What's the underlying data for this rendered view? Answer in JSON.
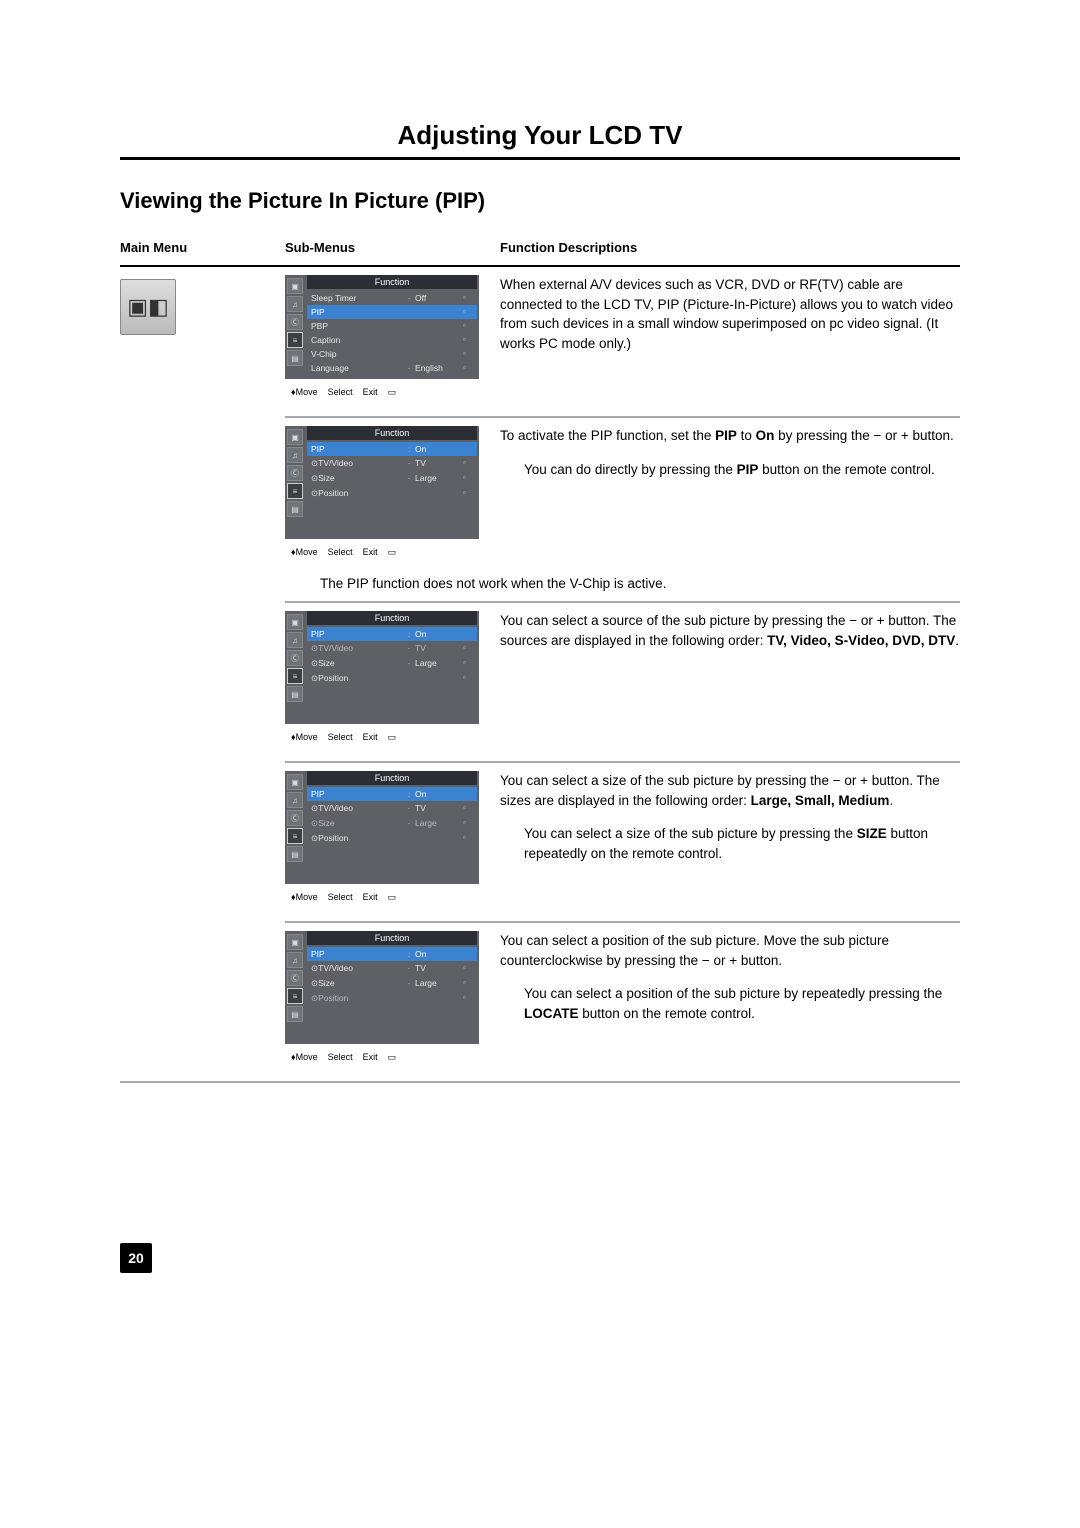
{
  "page_title": "Adjusting Your LCD TV",
  "section_title": "Viewing the Picture In Picture (PIP)",
  "headers": {
    "c1": "Main Menu",
    "c2": "Sub-Menus",
    "c3": "Function Descriptions"
  },
  "main_icon_glyph": "▣◧",
  "osd_common": {
    "title": "Function",
    "footer_move": "♦Move",
    "footer_select": "Select",
    "footer_exit": "Exit",
    "footer_glyph": "▭"
  },
  "block1": {
    "rows": [
      {
        "lbl": "Sleep Timer",
        "sep": "·",
        "val": "Off",
        "arr": "▫"
      },
      {
        "lbl": "PIP",
        "sep": "",
        "val": "",
        "arr": "▫",
        "hilite": true
      },
      {
        "lbl": "PBP",
        "sep": "",
        "val": "",
        "arr": "▫"
      },
      {
        "lbl": "Caption",
        "sep": "",
        "val": "",
        "arr": "▫"
      },
      {
        "lbl": "V-Chip",
        "sep": "",
        "val": "",
        "arr": "▫"
      },
      {
        "lbl": "Language",
        "sep": "·",
        "val": "English",
        "arr": "▫"
      }
    ],
    "desc": "When external A/V devices such as VCR, DVD or RF(TV) cable are connected to the LCD TV, PIP (Picture-In-Picture) allows you to watch video from such devices in a small window superimposed on pc video signal. (It works PC mode only.)"
  },
  "block2": {
    "rows": [
      {
        "lbl": "PIP",
        "sep": ":",
        "val": "On",
        "arr": "",
        "hilite": true
      },
      {
        "lbl": "⊙TV/Video",
        "sep": "·",
        "val": "TV",
        "arr": "▫"
      },
      {
        "lbl": "⊙Size",
        "sep": "·",
        "val": "Large",
        "arr": "▫"
      },
      {
        "lbl": "⊙Position",
        "sep": "",
        "val": "",
        "arr": "▫"
      }
    ],
    "desc_a_1": "To activate the PIP function, set the ",
    "desc_a_b1": "PIP",
    "desc_a_2": " to ",
    "desc_a_b2": "On",
    "desc_a_3": " by pressing the − or + button.",
    "desc_b_1": "You can do directly by pressing the ",
    "desc_b_b1": "PIP",
    "desc_b_2": " button on the remote control."
  },
  "note": "The PIP function does not work when the V-Chip is active.",
  "block3": {
    "rows": [
      {
        "lbl": "PIP",
        "sep": ":",
        "val": "On",
        "arr": "",
        "hilite": true
      },
      {
        "lbl": "⊙TV/Video",
        "sep": "·",
        "val": "TV",
        "arr": "▫",
        "dim": true
      },
      {
        "lbl": "⊙Size",
        "sep": "·",
        "val": "Large",
        "arr": "▫"
      },
      {
        "lbl": "⊙Position",
        "sep": "",
        "val": "",
        "arr": "▫"
      }
    ],
    "desc_1": "You can select a source of the sub picture by pressing the − or + button. The sources are displayed in the following order: ",
    "desc_b": "TV, Video, S-Video, DVD, DTV",
    "desc_2": "."
  },
  "block4": {
    "rows": [
      {
        "lbl": "PIP",
        "sep": ":",
        "val": "On",
        "arr": "",
        "hilite": true
      },
      {
        "lbl": "⊙TV/Video",
        "sep": "·",
        "val": "TV",
        "arr": "▫"
      },
      {
        "lbl": "⊙Size",
        "sep": "·",
        "val": "Large",
        "arr": "▫",
        "dim": true
      },
      {
        "lbl": "⊙Position",
        "sep": "",
        "val": "",
        "arr": "▫"
      }
    ],
    "desc_a_1": "You can select a size of the sub picture by pressing the − or + button. The sizes are displayed in the following order: ",
    "desc_a_b": "Large, Small, Medium",
    "desc_a_2": ".",
    "desc_b_1": "You can select a size of the sub picture by pressing the ",
    "desc_b_b": "SIZE",
    "desc_b_2": " button repeatedly on the remote control."
  },
  "block5": {
    "rows": [
      {
        "lbl": "PIP",
        "sep": ":",
        "val": "On",
        "arr": "",
        "hilite": true
      },
      {
        "lbl": "⊙TV/Video",
        "sep": "·",
        "val": "TV",
        "arr": "▫"
      },
      {
        "lbl": "⊙Size",
        "sep": "·",
        "val": "Large",
        "arr": "▫"
      },
      {
        "lbl": "⊙Position",
        "sep": "",
        "val": "",
        "arr": "▫",
        "dim": true
      }
    ],
    "desc_a": "You can select a position of the sub picture. Move the sub picture counterclockwise by pressing the − or + button.",
    "desc_b_1": "You can select a position of the sub picture by repeatedly pressing the ",
    "desc_b_b": "LOCATE",
    "desc_b_2": " button on the remote control."
  },
  "page_number": "20"
}
